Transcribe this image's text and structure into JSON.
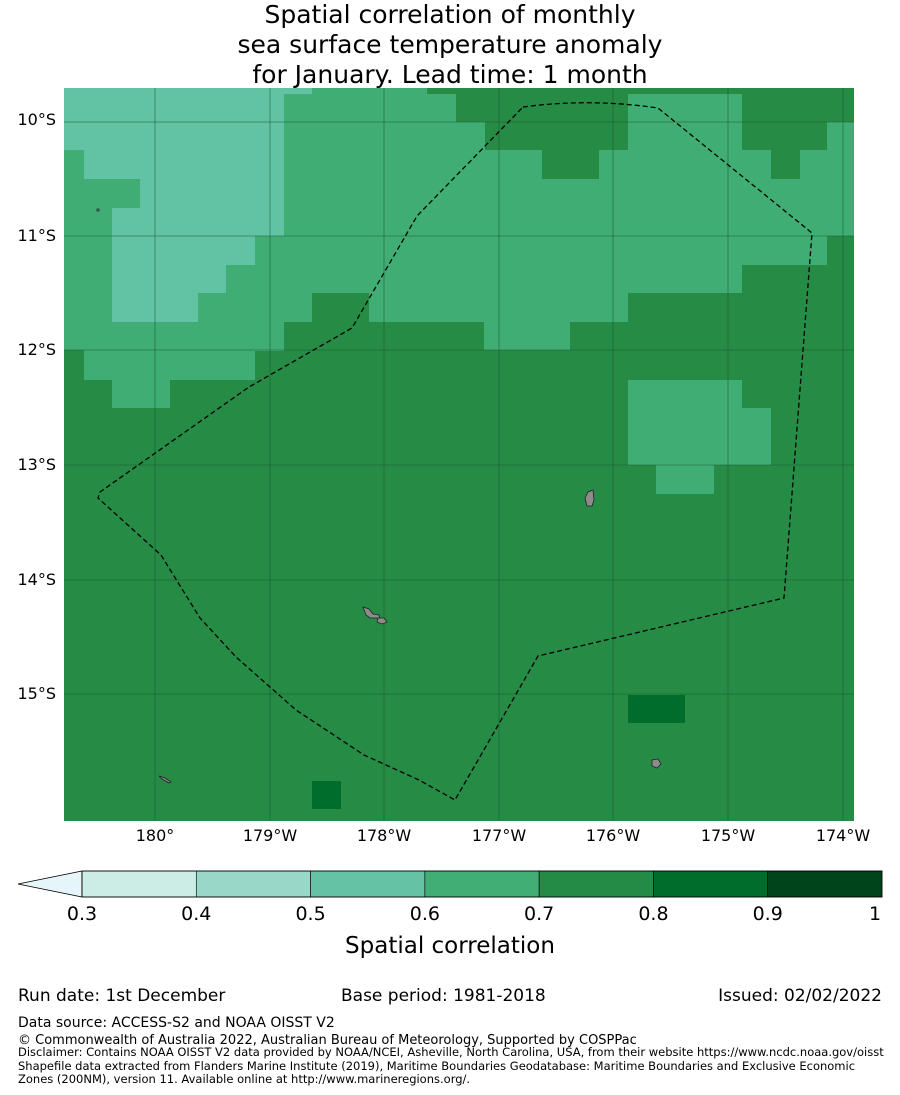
{
  "title": {
    "line1": "Spatial correlation of monthly",
    "line2": "sea surface temperature anomaly",
    "line3": "for January. Lead time: 1 month"
  },
  "map": {
    "lat_labels": [
      "10°S",
      "11°S",
      "12°S",
      "13°S",
      "14°S",
      "15°S"
    ],
    "lon_labels": [
      "180°",
      "179°W",
      "178°W",
      "177°W",
      "176°W",
      "175°W",
      "174°W"
    ],
    "lon_range": [
      179.2,
      186.1
    ],
    "lat_range": [
      -16.1,
      -9.73
    ],
    "boundary": "EEZ (dashed)",
    "colors": {
      "class_0_5_0_6": "#62c3a4",
      "class_0_6_0_7": "#40ae74",
      "class_0_7_0_8": "#258b45",
      "class_0_8_0_9": "#006d2c",
      "land": "#8c8c8c",
      "grid": "#1f5a33",
      "boundary": "#000000"
    }
  },
  "colorbar": {
    "label": "Spatial correlation",
    "ticks": [
      "0.3",
      "0.4",
      "0.5",
      "0.6",
      "0.7",
      "0.8",
      "0.9",
      "1"
    ],
    "colors": [
      "#ccece6",
      "#99d8c9",
      "#66c2a4",
      "#41ae76",
      "#238b45",
      "#006d2c",
      "#00441b"
    ],
    "extend_color": "#e5f5f9"
  },
  "footer": {
    "run_date": "Run date: 1st December",
    "base_period": "Base period: 1981-2018",
    "issued": "Issued: 02/02/2022",
    "data_source": "Data source: ACCESS-S2 and NOAA OISST V2",
    "copyright": "© Commonwealth of Australia 2022, Australian Bureau of Meteorology, Supported by COSPPac",
    "disclaimer": "Disclaimer: Contains NOAA OISST V2 data provided by NOAA/NCEI, Asheville, North Carolina, USA, from their website https://www.ncdc.noaa.gov/oisst\nShapefile data extracted from Flanders Marine Institute (2019), Maritime Boundaries Geodatabase: Maritime Boundaries and Exclusive Economic\nZones (200NM), version 11. Available online at http://www.marineregions.org/."
  }
}
